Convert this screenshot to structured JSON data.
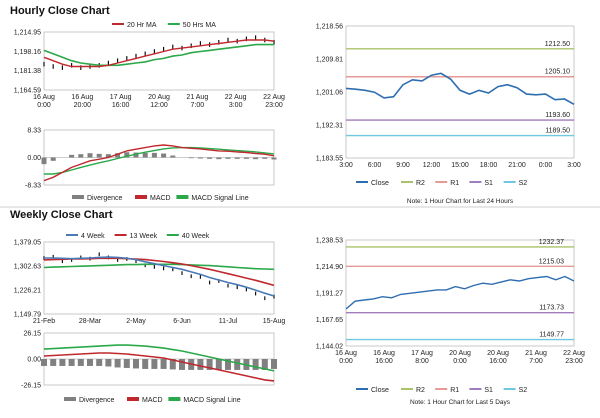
{
  "sections": {
    "hourly_title": "Hourly Close Chart",
    "weekly_title": "Weekly Close Chart"
  },
  "colors": {
    "price_bar": "#111111",
    "ma_fast": "#c0282d",
    "ma_slow": "#2aa84a",
    "macd_blue": "#4a79b5",
    "close": "#2e6eb0",
    "r2": "#a8c36a",
    "r1": "#e59a96",
    "s1": "#a07bbd",
    "s2": "#6fc7e0",
    "hist": "#808080",
    "panel_border": "#bdbdbd"
  },
  "chart_data": [
    {
      "id": "hourly_price",
      "type": "line",
      "title": "",
      "legend": [
        "20 Hr MA",
        "50 Hrs MA"
      ],
      "legend_position": "top",
      "ylim": [
        1164.59,
        1214.95
      ],
      "y_ticks": [
        "1,214.95",
        "1,198.16",
        "1,181.38",
        "1,164.59"
      ],
      "x_ticks": [
        [
          "16 Aug",
          "0:00"
        ],
        [
          "16 Aug",
          "20:00"
        ],
        [
          "17 Aug",
          "16:00"
        ],
        [
          "20 Aug",
          "12:00"
        ],
        [
          "21 Aug",
          "7:00"
        ],
        [
          "22 Aug",
          "3:00"
        ],
        [
          "22 Aug",
          "23:00"
        ]
      ],
      "x": [
        0,
        4,
        8,
        12,
        16,
        20,
        24,
        28,
        32,
        36,
        40,
        44,
        48,
        52,
        56,
        60,
        64,
        68,
        72,
        76,
        80,
        84,
        88,
        92,
        96,
        100
      ],
      "series": [
        {
          "name": "Close",
          "values": [
            1187,
            1185,
            1184,
            1186,
            1184,
            1185,
            1186,
            1188,
            1190,
            1192,
            1194,
            1196,
            1198,
            1200,
            1202,
            1201,
            1203,
            1205,
            1204,
            1206,
            1208,
            1207,
            1209,
            1210,
            1208,
            1206
          ]
        },
        {
          "name": "20 Hr MA",
          "values": [
            1193,
            1190,
            1187,
            1185,
            1185,
            1185,
            1185,
            1186,
            1188,
            1190,
            1192,
            1194,
            1196,
            1198,
            1200,
            1201,
            1202,
            1203,
            1204,
            1205,
            1206,
            1207,
            1208,
            1208,
            1208,
            1207
          ]
        },
        {
          "name": "50 Hrs MA",
          "values": [
            1199,
            1196,
            1193,
            1190,
            1188,
            1187,
            1186,
            1186,
            1186,
            1187,
            1188,
            1189,
            1191,
            1192,
            1194,
            1195,
            1197,
            1198,
            1199,
            1200,
            1201,
            1202,
            1203,
            1204,
            1204,
            1204
          ]
        }
      ]
    },
    {
      "id": "hourly_macd",
      "type": "line",
      "title": "",
      "legend": [
        "Divergence",
        "MACD",
        "MACD Signal Line"
      ],
      "legend_position": "bottom",
      "ylim": [
        -8.33,
        8.33
      ],
      "y_ticks": [
        "8.33",
        "0.00",
        "-8.33"
      ],
      "x": [
        0,
        4,
        8,
        12,
        16,
        20,
        24,
        28,
        32,
        36,
        40,
        44,
        48,
        52,
        56,
        60,
        64,
        68,
        72,
        76,
        80,
        84,
        88,
        92,
        96,
        100
      ],
      "series": [
        {
          "name": "MACD",
          "values": [
            -7,
            -6,
            -4.5,
            -3,
            -2,
            -1,
            -0.5,
            0,
            1,
            2,
            2.5,
            3,
            3.5,
            3.8,
            3.5,
            3,
            2.8,
            2.6,
            2.3,
            2,
            1.9,
            1.7,
            1.5,
            1.2,
            1,
            0.5
          ]
        },
        {
          "name": "MACD Signal Line",
          "values": [
            -5,
            -5,
            -4.5,
            -3.8,
            -3,
            -2.3,
            -1.6,
            -1,
            -0.3,
            0.4,
            1,
            1.6,
            2.1,
            2.6,
            2.9,
            3,
            3,
            2.9,
            2.7,
            2.5,
            2.3,
            2.1,
            1.9,
            1.7,
            1.4,
            1.1
          ]
        },
        {
          "name": "Divergence",
          "values": [
            -2,
            -1,
            0,
            0.8,
            1,
            1.3,
            1.1,
            1,
            1.3,
            1.6,
            1.5,
            1.4,
            1.4,
            1.2,
            0.6,
            0,
            -0.2,
            -0.3,
            -0.4,
            -0.5,
            -0.4,
            -0.4,
            -0.4,
            -0.5,
            -0.4,
            -0.6
          ]
        }
      ]
    },
    {
      "id": "hourly_close_24h",
      "type": "line",
      "title": "",
      "note": "Note: 1 Hour Chart for Last 24 Hours",
      "legend": [
        "Close",
        "R2",
        "R1",
        "S1",
        "S2"
      ],
      "legend_position": "bottom",
      "ylim": [
        1183.55,
        1218.56
      ],
      "y_ticks": [
        "1,218.56",
        "1,209.81",
        "1,201.06",
        "1,192.31",
        "1,183.55"
      ],
      "x_ticks": [
        "3:00",
        "6:00",
        "9:00",
        "12:00",
        "15:00",
        "18:00",
        "21:00",
        "0:00",
        "3:00"
      ],
      "x": [
        0,
        1,
        2,
        3,
        4,
        5,
        6,
        7,
        8,
        9,
        10,
        11,
        12,
        13,
        14,
        15,
        16,
        17,
        18,
        19,
        20,
        21,
        22,
        23,
        24
      ],
      "series": [
        {
          "name": "Close",
          "values": [
            1202.0,
            1201.8,
            1201.5,
            1201.0,
            1199.5,
            1199.8,
            1203.0,
            1204.3,
            1204.0,
            1205.5,
            1206.0,
            1204.5,
            1201.5,
            1200.5,
            1201.5,
            1200.8,
            1202.5,
            1203.0,
            1202.2,
            1200.5,
            1200.3,
            1200.5,
            1199.0,
            1199.2,
            1197.8
          ]
        }
      ],
      "levels": [
        {
          "name": "R2",
          "value": 1212.5,
          "label": "1212.50"
        },
        {
          "name": "R1",
          "value": 1205.1,
          "label": "1205.10"
        },
        {
          "name": "S1",
          "value": 1193.6,
          "label": "1193.60"
        },
        {
          "name": "S2",
          "value": 1189.5,
          "label": "1189.50"
        }
      ]
    },
    {
      "id": "weekly_price",
      "type": "line",
      "title": "",
      "legend": [
        "4 Week",
        "13 Week",
        "40 Week"
      ],
      "legend_position": "top",
      "ylim": [
        1149.79,
        1379.05
      ],
      "y_ticks": [
        "1,379.05",
        "1,302.63",
        "1,226.21",
        "1,149.79"
      ],
      "x_ticks": [
        "21-Feb",
        "28-Mar",
        "2-May",
        "6-Jun",
        "11-Jul",
        "15-Aug"
      ],
      "x": [
        0,
        1,
        2,
        3,
        4,
        5,
        6,
        7,
        8,
        9,
        10,
        11,
        12,
        13,
        14,
        15,
        16,
        17,
        18,
        19,
        20,
        21,
        22,
        23,
        24,
        25
      ],
      "series": [
        {
          "name": "Close",
          "values": [
            1328,
            1332,
            1318,
            1322,
            1330,
            1326,
            1340,
            1330,
            1322,
            1325,
            1318,
            1305,
            1300,
            1295,
            1292,
            1280,
            1270,
            1268,
            1250,
            1255,
            1240,
            1235,
            1228,
            1215,
            1200,
            1205
          ]
        },
        {
          "name": "4 Week",
          "values": [
            1328,
            1328,
            1327,
            1326,
            1327,
            1328,
            1330,
            1331,
            1330,
            1327,
            1323,
            1316,
            1310,
            1304,
            1298,
            1292,
            1284,
            1276,
            1266,
            1258,
            1250,
            1243,
            1235,
            1226,
            1216,
            1207
          ]
        },
        {
          "name": "13 Week",
          "values": [
            1322,
            1323,
            1324,
            1325,
            1325,
            1326,
            1327,
            1327,
            1327,
            1326,
            1325,
            1323,
            1320,
            1317,
            1313,
            1309,
            1304,
            1298,
            1292,
            1285,
            1278,
            1271,
            1264,
            1257,
            1249,
            1241
          ]
        },
        {
          "name": "40 Week",
          "values": [
            1298,
            1299,
            1300,
            1301,
            1302,
            1303,
            1304,
            1305,
            1306,
            1307,
            1307,
            1308,
            1308,
            1308,
            1308,
            1307,
            1306,
            1305,
            1304,
            1302,
            1300,
            1298,
            1296,
            1294,
            1293,
            1292
          ]
        }
      ]
    },
    {
      "id": "weekly_macd",
      "type": "bar",
      "title": "",
      "legend": [
        "Divergence",
        "MACD",
        "MACD Signal Line"
      ],
      "legend_position": "bottom",
      "ylim": [
        -26.15,
        26.15
      ],
      "y_ticks": [
        "26.15",
        "0.00",
        "-26.15"
      ],
      "x": [
        0,
        1,
        2,
        3,
        4,
        5,
        6,
        7,
        8,
        9,
        10,
        11,
        12,
        13,
        14,
        15,
        16,
        17,
        18,
        19,
        20,
        21,
        22,
        23,
        24,
        25
      ],
      "series": [
        {
          "name": "MACD",
          "values": [
            3,
            3.5,
            4,
            4.5,
            5,
            5.5,
            6,
            6,
            5.5,
            5,
            4,
            3,
            2,
            1,
            -1,
            -3,
            -5,
            -7,
            -9,
            -11,
            -13,
            -15,
            -17,
            -19,
            -21,
            -22
          ]
        },
        {
          "name": "MACD Signal Line",
          "values": [
            10,
            10.5,
            11,
            11.5,
            12,
            12.5,
            13,
            13.5,
            14,
            14,
            13.5,
            13,
            12,
            11,
            9.5,
            8,
            6,
            4,
            2,
            0,
            -2,
            -4,
            -6,
            -8,
            -10,
            -12
          ]
        },
        {
          "name": "Divergence",
          "values": [
            -7,
            -7,
            -7,
            -7,
            -7,
            -7,
            -7,
            -7.5,
            -8.5,
            -9,
            -9.5,
            -10,
            -10,
            -10,
            -10.5,
            -11,
            -11,
            -11,
            -11,
            -11,
            -11,
            -11,
            -11,
            -11,
            -11,
            -10
          ]
        }
      ]
    },
    {
      "id": "hourly_close_week",
      "type": "line",
      "title": "",
      "note": "Note: 1 Hour Chart for Last 5 Days",
      "legend": [
        "Close",
        "R2",
        "R1",
        "S1",
        "S2"
      ],
      "legend_position": "bottom",
      "ylim": [
        1144.02,
        1238.53
      ],
      "y_ticks": [
        "1,238.53",
        "1,214.90",
        "1,191.27",
        "1,167.65",
        "1,144.02"
      ],
      "x_ticks": [
        [
          "16 Aug",
          "0:00"
        ],
        [
          "16 Aug",
          "16:00"
        ],
        [
          "17 Aug",
          "8:00"
        ],
        [
          "20 Aug",
          "0:00"
        ],
        [
          "20 Aug",
          "16:00"
        ],
        [
          "21 Aug",
          "7:00"
        ],
        [
          "22 Aug",
          "23:00"
        ],
        [
          "22 Aug",
          "23:00"
        ]
      ],
      "x": [
        0,
        4,
        8,
        12,
        16,
        20,
        24,
        28,
        32,
        36,
        40,
        44,
        48,
        52,
        56,
        60,
        64,
        68,
        72,
        76,
        80,
        84,
        88,
        92,
        96,
        100
      ],
      "series": [
        {
          "name": "Close",
          "values": [
            1177,
            1184,
            1185,
            1186,
            1188,
            1187,
            1190,
            1191,
            1192,
            1193,
            1194,
            1194,
            1197,
            1195,
            1198,
            1200,
            1199,
            1201,
            1203,
            1202,
            1204,
            1205,
            1206,
            1203,
            1206,
            1202
          ]
        }
      ],
      "levels": [
        {
          "name": "R2",
          "value": 1232.37,
          "label": "1232.37"
        },
        {
          "name": "R1",
          "value": 1215.03,
          "label": "1215.03"
        },
        {
          "name": "S1",
          "value": 1173.73,
          "label": "1173.73"
        },
        {
          "name": "S2",
          "value": 1149.77,
          "label": "1149.77"
        }
      ]
    }
  ]
}
